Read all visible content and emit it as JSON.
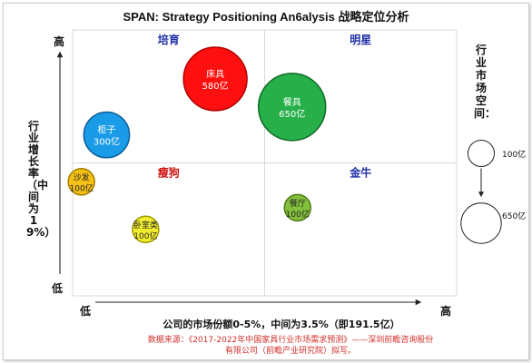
{
  "chart_data": {
    "type": "scatter",
    "title": "SPAN: Strategy Positioning An6alysis 战略定位分析",
    "xlabel": "公司的市场份额0-5%，中间为3.5%（即191.5亿）",
    "ylabel": "行业增长率（中间为19%）",
    "x_low": "低",
    "x_high": "高",
    "y_low": "低",
    "y_high": "高",
    "xlim": [
      0,
      7
    ],
    "ylim": [
      0,
      38
    ],
    "x_mid": 3.5,
    "y_mid": 19,
    "quadrants": [
      {
        "label": "培育",
        "position": "top-left",
        "color": "#1f2fa8"
      },
      {
        "label": "明星",
        "position": "top-right",
        "color": "#1f2fa8"
      },
      {
        "label": "瘦狗",
        "position": "bottom-left",
        "color": "#cc1111"
      },
      {
        "label": "金牛",
        "position": "bottom-right",
        "color": "#1f2fa8"
      }
    ],
    "points": [
      {
        "name": "床具",
        "value_label": "580亿",
        "x": 2.6,
        "y": 31,
        "size": 580,
        "color": "#ff1010",
        "stroke": "#b00000",
        "text_color": "#ffffff"
      },
      {
        "name": "柜子",
        "value_label": "300亿",
        "x": 0.62,
        "y": 23,
        "size": 300,
        "color": "#1a9be8",
        "stroke": "#0b5e96",
        "text_color": "#ffffff"
      },
      {
        "name": "餐具",
        "value_label": "650亿",
        "x": 4.0,
        "y": 27,
        "size": 650,
        "color": "#27b04a",
        "stroke": "#0f6a25",
        "text_color": "#ffffff"
      },
      {
        "name": "沙发",
        "value_label": "100亿",
        "x": 0.16,
        "y": 16.3,
        "size": 100,
        "color": "#f3c016",
        "stroke": "#a77d00",
        "text_color": "#222222"
      },
      {
        "name": "卧室类",
        "value_label": "100亿",
        "x": 1.33,
        "y": 9.5,
        "size": 100,
        "color": "#f1ec30",
        "stroke": "#9e9800",
        "text_color": "#222222"
      },
      {
        "name": "餐厅",
        "value_label": "100亿",
        "x": 4.1,
        "y": 12.6,
        "size": 100,
        "color": "#83bf3c",
        "stroke": "#4c7d14",
        "text_color": "#222222"
      }
    ],
    "legend": {
      "title": "行业市场空间：",
      "small_label": "100亿",
      "large_label": "650亿",
      "placement": "right"
    },
    "source": "数据来源：《2017-2022年中国家具行业市场需求预测》——深圳前瞻咨询股份有限公司（前瞻产业研究院）拟写。"
  }
}
